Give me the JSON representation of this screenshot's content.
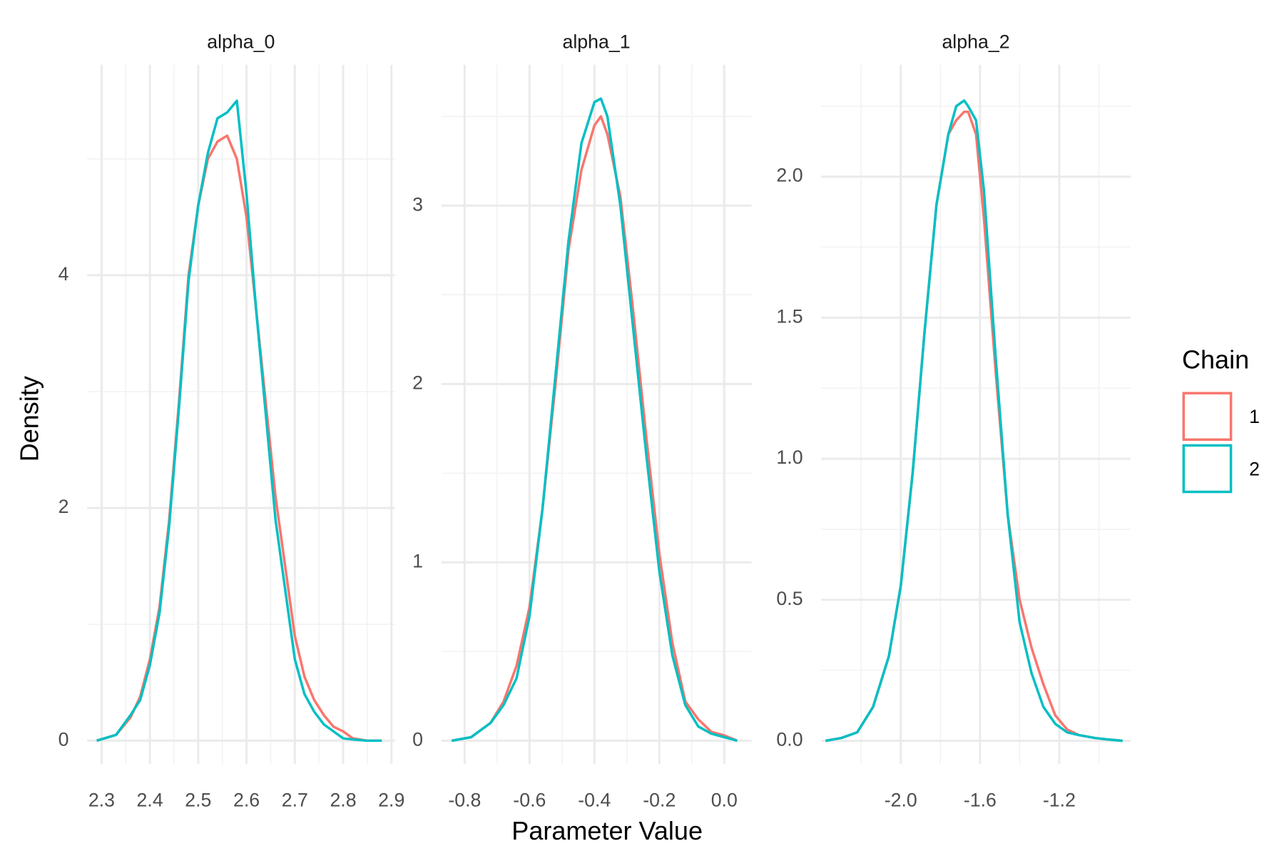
{
  "chart_data": [
    {
      "type": "line",
      "title": "alpha_0",
      "x": [
        2.29,
        2.33,
        2.36,
        2.38,
        2.4,
        2.42,
        2.44,
        2.46,
        2.48,
        2.5,
        2.52,
        2.54,
        2.56,
        2.58,
        2.6,
        2.62,
        2.64,
        2.66,
        2.68,
        2.7,
        2.72,
        2.74,
        2.76,
        2.78,
        2.8,
        2.82,
        2.85,
        2.88
      ],
      "series": [
        {
          "name": "1",
          "color": "#F8766D",
          "values": [
            0,
            0.05,
            0.2,
            0.38,
            0.7,
            1.15,
            1.9,
            2.9,
            4.0,
            4.6,
            5.0,
            5.15,
            5.2,
            5.0,
            4.5,
            3.7,
            2.9,
            2.1,
            1.5,
            0.9,
            0.55,
            0.35,
            0.22,
            0.12,
            0.08,
            0.02,
            0,
            0
          ]
        },
        {
          "name": "2",
          "color": "#00BFC4",
          "values": [
            0,
            0.05,
            0.22,
            0.35,
            0.65,
            1.1,
            1.85,
            2.85,
            3.95,
            4.6,
            5.05,
            5.35,
            5.4,
            5.5,
            4.7,
            3.7,
            2.8,
            1.9,
            1.3,
            0.7,
            0.4,
            0.25,
            0.14,
            0.08,
            0.02,
            0.01,
            0,
            0
          ]
        }
      ],
      "xlim": [
        2.27,
        2.907
      ],
      "ylim": [
        -0.2,
        5.81
      ],
      "xticks": [
        2.3,
        2.4,
        2.5,
        2.6,
        2.7,
        2.8,
        2.9
      ],
      "yticks": [
        0,
        2,
        4
      ],
      "xminor": [
        2.35,
        2.45,
        2.55,
        2.65,
        2.75,
        2.85
      ],
      "yminor": [
        1,
        3,
        5
      ],
      "grid": true
    },
    {
      "type": "line",
      "title": "alpha_1",
      "x": [
        -0.84,
        -0.78,
        -0.72,
        -0.68,
        -0.64,
        -0.6,
        -0.56,
        -0.52,
        -0.48,
        -0.44,
        -0.4,
        -0.38,
        -0.36,
        -0.32,
        -0.28,
        -0.24,
        -0.2,
        -0.16,
        -0.12,
        -0.08,
        -0.04,
        0.0,
        0.04
      ],
      "series": [
        {
          "name": "1",
          "color": "#F8766D",
          "values": [
            0,
            0.02,
            0.1,
            0.22,
            0.42,
            0.75,
            1.3,
            2.0,
            2.75,
            3.2,
            3.45,
            3.5,
            3.4,
            3.05,
            2.4,
            1.7,
            1.05,
            0.55,
            0.22,
            0.12,
            0.05,
            0.03,
            0
          ]
        },
        {
          "name": "2",
          "color": "#00BFC4",
          "values": [
            0,
            0.02,
            0.1,
            0.2,
            0.35,
            0.7,
            1.3,
            2.05,
            2.8,
            3.35,
            3.58,
            3.6,
            3.5,
            3.0,
            2.3,
            1.6,
            0.95,
            0.48,
            0.2,
            0.08,
            0.04,
            0.02,
            0
          ]
        }
      ],
      "xlim": [
        -0.872,
        0.084
      ],
      "ylim": [
        -0.13,
        3.79
      ],
      "xticks": [
        -0.8,
        -0.6,
        -0.4,
        -0.2,
        {
          "value": 0,
          "label": "0.0"
        }
      ],
      "yticks": [
        0,
        1,
        2,
        3
      ],
      "xminor": [
        -0.7,
        -0.5,
        -0.3,
        -0.1
      ],
      "yminor": [
        0.5,
        1.5,
        2.5,
        3.5
      ],
      "grid": true
    },
    {
      "type": "line",
      "title": "alpha_2",
      "x": [
        -2.38,
        -2.3,
        -2.22,
        -2.14,
        -2.06,
        -2.0,
        -1.94,
        -1.88,
        -1.82,
        -1.76,
        -1.72,
        -1.68,
        -1.66,
        -1.62,
        -1.58,
        -1.52,
        -1.46,
        -1.4,
        -1.34,
        -1.28,
        -1.22,
        -1.16,
        -1.1,
        -1.02,
        -0.96,
        -0.88
      ],
      "series": [
        {
          "name": "1",
          "color": "#F8766D",
          "values": [
            0,
            0.01,
            0.03,
            0.12,
            0.3,
            0.55,
            0.95,
            1.45,
            1.9,
            2.15,
            2.2,
            2.23,
            2.23,
            2.15,
            1.85,
            1.3,
            0.8,
            0.5,
            0.33,
            0.2,
            0.09,
            0.04,
            0.02,
            0.01,
            0.005,
            0
          ]
        },
        {
          "name": "2",
          "color": "#00BFC4",
          "values": [
            0,
            0.01,
            0.03,
            0.12,
            0.3,
            0.55,
            0.95,
            1.45,
            1.9,
            2.15,
            2.25,
            2.27,
            2.25,
            2.2,
            1.95,
            1.35,
            0.8,
            0.42,
            0.24,
            0.12,
            0.06,
            0.03,
            0.02,
            0.01,
            0.005,
            0
          ]
        }
      ],
      "xlim": [
        -2.402,
        -0.84
      ],
      "ylim": [
        -0.082,
        2.397
      ],
      "xticks": [
        {
          "value": -2,
          "label": "-2.0"
        },
        -1.6,
        -1.2
      ],
      "yticks": [
        {
          "value": 0,
          "label": "0.0"
        },
        0.5,
        {
          "value": 1,
          "label": "1.0"
        },
        1.5,
        {
          "value": 2,
          "label": "2.0"
        }
      ],
      "xminor": [
        -2.2,
        -1.8,
        -1.4,
        -1.0
      ],
      "yminor": [
        0.25,
        0.75,
        1.25,
        1.75,
        2.25
      ],
      "grid": true
    }
  ],
  "x_label": "Parameter Value",
  "y_label": "Density",
  "legend": {
    "title": "Chain",
    "position": "right"
  }
}
